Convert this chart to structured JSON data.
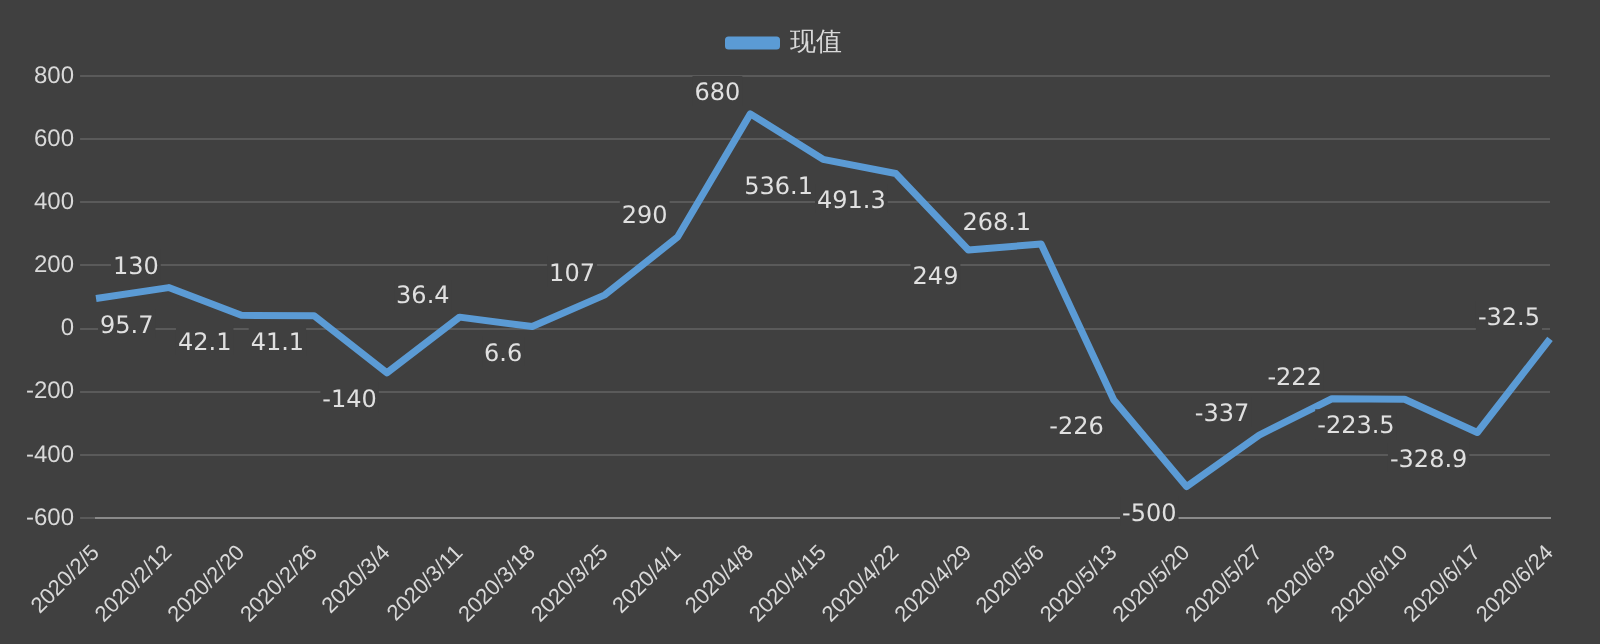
{
  "chart_data": {
    "type": "line",
    "categories": [
      "2020/2/5",
      "2020/2/12",
      "2020/2/20",
      "2020/2/26",
      "2020/3/4",
      "2020/3/11",
      "2020/3/18",
      "2020/3/25",
      "2020/4/1",
      "2020/4/8",
      "2020/4/15",
      "2020/4/22",
      "2020/4/29",
      "2020/5/6",
      "2020/5/13",
      "2020/5/20",
      "2020/5/27",
      "2020/6/3",
      "2020/6/10",
      "2020/6/17",
      "2020/6/24"
    ],
    "series": [
      {
        "name": "现值",
        "color": "#5b9bd5",
        "values": [
          95.7,
          130,
          42.1,
          41.1,
          -140,
          36.4,
          6.6,
          107,
          290,
          680,
          536.1,
          491.3,
          249,
          268.1,
          -226,
          -500,
          -337,
          -222,
          -223.5,
          -328.9,
          -32.5
        ]
      }
    ],
    "ylim": [
      -600,
      800
    ],
    "yticks": [
      -600,
      -400,
      -200,
      0,
      200,
      400,
      600,
      800
    ],
    "grid": "y",
    "legend": "top",
    "data_labels": true,
    "marker": "none",
    "line_style": "solid"
  }
}
